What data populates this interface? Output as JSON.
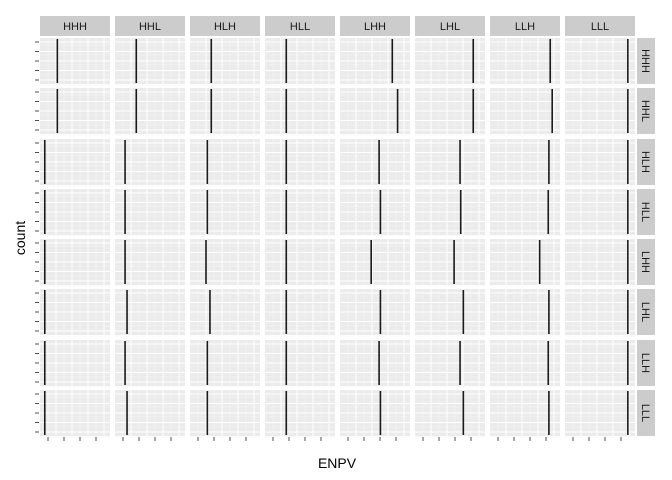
{
  "chart_data": {
    "type": "faceted-histogram",
    "xlabel": "ENPV",
    "ylabel": "count",
    "col_facets": [
      "HHH",
      "HHL",
      "HLH",
      "HLL",
      "LHH",
      "LHL",
      "LLH",
      "LLL"
    ],
    "row_facets": [
      "HHH",
      "HHL",
      "HLH",
      "HLL",
      "LHH",
      "LHL",
      "LLH",
      "LLL"
    ],
    "x_tick_labels": [],
    "y_tick_labels": [],
    "xlim": [
      0,
      1
    ],
    "ylim": [
      0,
      1
    ],
    "bars": [
      [
        0.22,
        0.28,
        0.28,
        0.28,
        0.75,
        0.84,
        0.87,
        0.91
      ],
      [
        0.22,
        0.28,
        0.28,
        0.28,
        0.83,
        0.84,
        0.9,
        0.91
      ],
      [
        0.03,
        0.11,
        0.22,
        0.28,
        0.55,
        0.64,
        0.85,
        0.91
      ],
      [
        0.03,
        0.11,
        0.22,
        0.28,
        0.57,
        0.65,
        0.84,
        0.91
      ],
      [
        0.03,
        0.11,
        0.2,
        0.28,
        0.43,
        0.55,
        0.71,
        0.91
      ],
      [
        0.03,
        0.14,
        0.26,
        0.28,
        0.57,
        0.69,
        0.85,
        0.91
      ],
      [
        0.03,
        0.11,
        0.22,
        0.28,
        0.55,
        0.64,
        0.84,
        0.91
      ],
      [
        0.03,
        0.14,
        0.22,
        0.28,
        0.57,
        0.69,
        0.85,
        0.91
      ]
    ],
    "grid": true,
    "colors": {
      "panel": "#ebebeb",
      "grid_major": "#ffffff",
      "grid_minor": "#f3f3f3",
      "strip": "#cccccc",
      "bar": "#1a1a1a"
    }
  }
}
